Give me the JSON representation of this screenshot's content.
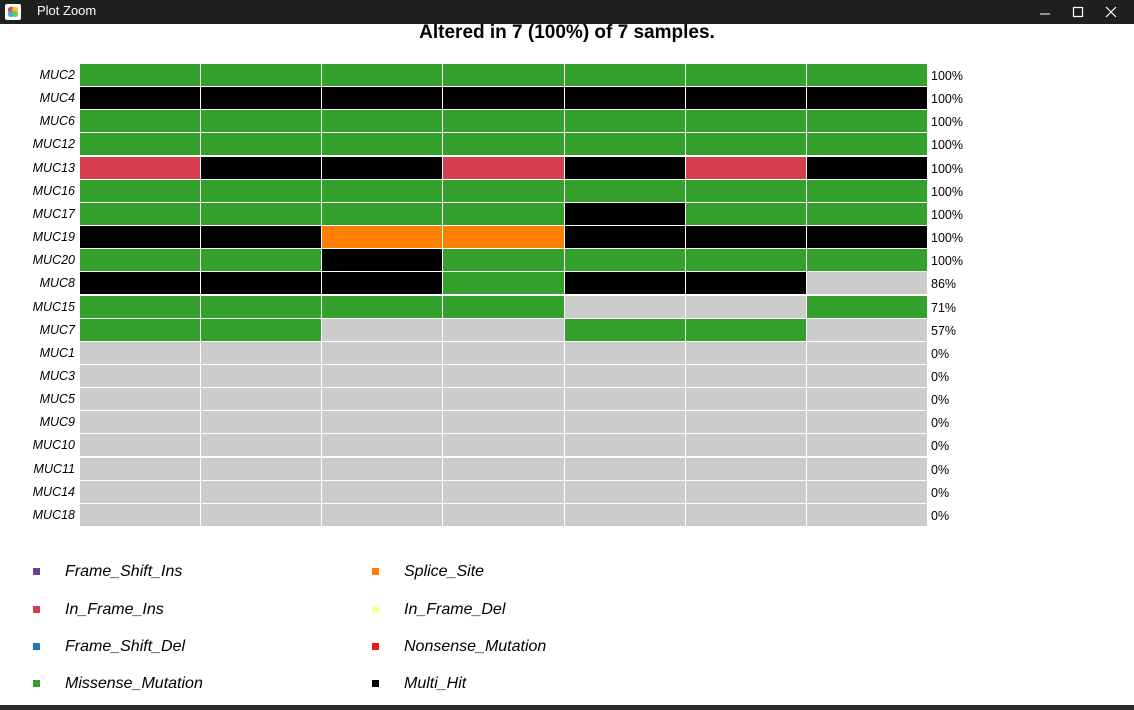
{
  "window": {
    "title": "Plot Zoom",
    "icon": "rstudio-plot-icon",
    "controls": [
      "minimize-icon",
      "maximize-icon",
      "close-icon"
    ]
  },
  "plot": {
    "title": "Altered in 7 (100%) of 7 samples.",
    "colors": {
      "Missense_Mutation": "#33A02C",
      "Multi_Hit": "#000000",
      "In_Frame_Ins": "#D53E4F",
      "Splice_Site": "#FF7F00",
      "none": "#CCCCCC"
    },
    "sample_count": 7,
    "rows": [
      {
        "gene": "MUC2",
        "pct": "100%",
        "cells": [
          "Missense_Mutation",
          "Missense_Mutation",
          "Missense_Mutation",
          "Missense_Mutation",
          "Missense_Mutation",
          "Missense_Mutation",
          "Missense_Mutation"
        ]
      },
      {
        "gene": "MUC4",
        "pct": "100%",
        "cells": [
          "Multi_Hit",
          "Multi_Hit",
          "Multi_Hit",
          "Multi_Hit",
          "Multi_Hit",
          "Multi_Hit",
          "Multi_Hit"
        ]
      },
      {
        "gene": "MUC6",
        "pct": "100%",
        "cells": [
          "Missense_Mutation",
          "Missense_Mutation",
          "Missense_Mutation",
          "Missense_Mutation",
          "Missense_Mutation",
          "Missense_Mutation",
          "Missense_Mutation"
        ]
      },
      {
        "gene": "MUC12",
        "pct": "100%",
        "cells": [
          "Missense_Mutation",
          "Missense_Mutation",
          "Missense_Mutation",
          "Missense_Mutation",
          "Missense_Mutation",
          "Missense_Mutation",
          "Missense_Mutation"
        ]
      },
      {
        "gene": "MUC13",
        "pct": "100%",
        "cells": [
          "In_Frame_Ins",
          "Multi_Hit",
          "Multi_Hit",
          "In_Frame_Ins",
          "Multi_Hit",
          "In_Frame_Ins",
          "Multi_Hit"
        ]
      },
      {
        "gene": "MUC16",
        "pct": "100%",
        "cells": [
          "Missense_Mutation",
          "Missense_Mutation",
          "Missense_Mutation",
          "Missense_Mutation",
          "Missense_Mutation",
          "Missense_Mutation",
          "Missense_Mutation"
        ]
      },
      {
        "gene": "MUC17",
        "pct": "100%",
        "cells": [
          "Missense_Mutation",
          "Missense_Mutation",
          "Missense_Mutation",
          "Missense_Mutation",
          "Multi_Hit",
          "Missense_Mutation",
          "Missense_Mutation"
        ]
      },
      {
        "gene": "MUC19",
        "pct": "100%",
        "cells": [
          "Multi_Hit",
          "Multi_Hit",
          "Splice_Site",
          "Splice_Site",
          "Multi_Hit",
          "Multi_Hit",
          "Multi_Hit"
        ]
      },
      {
        "gene": "MUC20",
        "pct": "100%",
        "cells": [
          "Missense_Mutation",
          "Missense_Mutation",
          "Multi_Hit",
          "Missense_Mutation",
          "Missense_Mutation",
          "Missense_Mutation",
          "Missense_Mutation"
        ]
      },
      {
        "gene": "MUC8",
        "pct": "86%",
        "cells": [
          "Multi_Hit",
          "Multi_Hit",
          "Multi_Hit",
          "Missense_Mutation",
          "Multi_Hit",
          "Multi_Hit",
          "none"
        ]
      },
      {
        "gene": "MUC15",
        "pct": "71%",
        "cells": [
          "Missense_Mutation",
          "Missense_Mutation",
          "Missense_Mutation",
          "Missense_Mutation",
          "none",
          "none",
          "Missense_Mutation"
        ]
      },
      {
        "gene": "MUC7",
        "pct": "57%",
        "cells": [
          "Missense_Mutation",
          "Missense_Mutation",
          "none",
          "none",
          "Missense_Mutation",
          "Missense_Mutation",
          "none"
        ]
      },
      {
        "gene": "MUC1",
        "pct": "0%",
        "cells": [
          "none",
          "none",
          "none",
          "none",
          "none",
          "none",
          "none"
        ]
      },
      {
        "gene": "MUC3",
        "pct": "0%",
        "cells": [
          "none",
          "none",
          "none",
          "none",
          "none",
          "none",
          "none"
        ]
      },
      {
        "gene": "MUC5",
        "pct": "0%",
        "cells": [
          "none",
          "none",
          "none",
          "none",
          "none",
          "none",
          "none"
        ]
      },
      {
        "gene": "MUC9",
        "pct": "0%",
        "cells": [
          "none",
          "none",
          "none",
          "none",
          "none",
          "none",
          "none"
        ]
      },
      {
        "gene": "MUC10",
        "pct": "0%",
        "cells": [
          "none",
          "none",
          "none",
          "none",
          "none",
          "none",
          "none"
        ]
      },
      {
        "gene": "MUC11",
        "pct": "0%",
        "cells": [
          "none",
          "none",
          "none",
          "none",
          "none",
          "none",
          "none"
        ]
      },
      {
        "gene": "MUC14",
        "pct": "0%",
        "cells": [
          "none",
          "none",
          "none",
          "none",
          "none",
          "none",
          "none"
        ]
      },
      {
        "gene": "MUC18",
        "pct": "0%",
        "cells": [
          "none",
          "none",
          "none",
          "none",
          "none",
          "none",
          "none"
        ]
      }
    ]
  },
  "legend": [
    {
      "label": "Frame_Shift_Ins",
      "color": "#6A3D9A"
    },
    {
      "label": "Splice_Site",
      "color": "#FF7F00"
    },
    {
      "label": "In_Frame_Ins",
      "color": "#D53E4F"
    },
    {
      "label": "In_Frame_Del",
      "color": "#FFFF99"
    },
    {
      "label": "Frame_Shift_Del",
      "color": "#1F78B4"
    },
    {
      "label": "Nonsense_Mutation",
      "color": "#E31A1C"
    },
    {
      "label": "Missense_Mutation",
      "color": "#33A02C"
    },
    {
      "label": "Multi_Hit",
      "color": "#000000"
    }
  ]
}
